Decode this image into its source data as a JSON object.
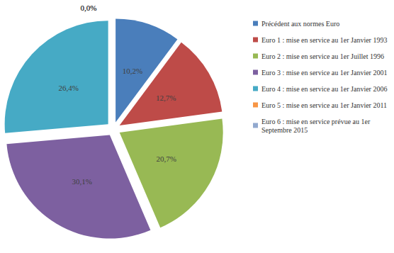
{
  "chart_data": {
    "type": "pie",
    "categories": [
      "Précédent aux normes Euro",
      "Euro 1 : mise en service au 1er Janvier 1993",
      "Euro 2 : mise en service au 1er Juillet 1996",
      "Euro 3 : mise en service au 1er Janvier 2001",
      "Euro 4 : mise en service au 1er Janvier 2006",
      "Euro 5 : mise en service au 1er Janvier 2011",
      "Euro 6 : mise en service prévue au 1er Septembre 2015"
    ],
    "values": [
      10.2,
      12.7,
      20.7,
      30.1,
      26.4,
      0.0,
      0.0
    ],
    "value_labels": [
      "10,2%",
      "12,7%",
      "20,7%",
      "30,1%",
      "26,4%",
      "0,0%",
      "0,0%"
    ],
    "colors": [
      "#4a7ebb",
      "#be4b48",
      "#98b954",
      "#7d60a0",
      "#46aac5",
      "#f79646",
      "#92a9cf"
    ],
    "data_labels": true,
    "legend": "right"
  }
}
